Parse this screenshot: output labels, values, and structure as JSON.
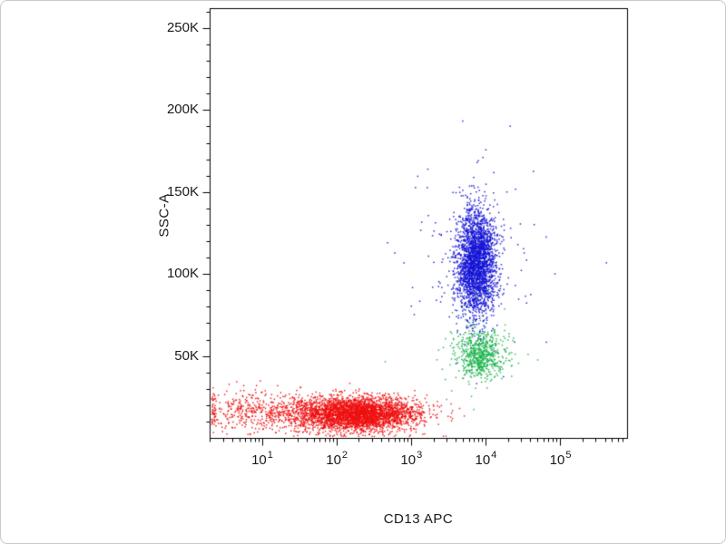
{
  "chart_data": {
    "type": "scatter",
    "title": "",
    "xlabel": "CD13 APC",
    "ylabel": "SSC-A",
    "x_scale": "log10",
    "x_domain_log10": [
      0.3,
      5.9
    ],
    "y_scale": "linear",
    "y_domain": [
      0,
      262144
    ],
    "grid": false,
    "legend": "none",
    "x_ticks": [
      {
        "log10": 1,
        "base": "10",
        "exp": "1"
      },
      {
        "log10": 2,
        "base": "10",
        "exp": "2"
      },
      {
        "log10": 3,
        "base": "10",
        "exp": "3"
      },
      {
        "log10": 4,
        "base": "10",
        "exp": "4"
      },
      {
        "log10": 5,
        "base": "10",
        "exp": "5"
      }
    ],
    "y_ticks": [
      {
        "value": 50000,
        "label": "50K"
      },
      {
        "value": 100000,
        "label": "100K"
      },
      {
        "value": 150000,
        "label": "150K"
      },
      {
        "value": 200000,
        "label": "200K"
      },
      {
        "value": 250000,
        "label": "250K"
      }
    ],
    "populations": [
      {
        "name": "cd13-negative-cells",
        "color": "#ee1111",
        "count": 3600,
        "x_log10_mean": 2.25,
        "x_log10_sd": 0.42,
        "y_mean": 15000,
        "y_sd": 5200
      },
      {
        "name": "cd13-negative-axis-pile",
        "color": "#ee1111",
        "count": 450,
        "x_log10_mean": 0.95,
        "x_log10_sd": 0.45,
        "y_mean": 16500,
        "y_sd": 6500
      },
      {
        "name": "cd13-positive-granulocytes",
        "color": "#1414d6",
        "count": 2600,
        "x_log10_mean": 3.87,
        "x_log10_sd": 0.13,
        "y_mean": 107000,
        "y_sd": 16000
      },
      {
        "name": "granulocyte-outliers",
        "color": "#1414d6",
        "count": 130,
        "x_log10_mean": 3.8,
        "x_log10_sd": 0.5,
        "y_mean": 110000,
        "y_sd": 33000
      },
      {
        "name": "cd13-positive-monocytes",
        "color": "#17b24a",
        "count": 640,
        "x_log10_mean": 3.93,
        "x_log10_sd": 0.16,
        "y_mean": 51000,
        "y_sd": 7000
      },
      {
        "name": "monocyte-outliers",
        "color": "#17b24a",
        "count": 55,
        "x_log10_mean": 3.82,
        "x_log10_sd": 0.3,
        "y_mean": 55000,
        "y_sd": 13000
      }
    ]
  }
}
